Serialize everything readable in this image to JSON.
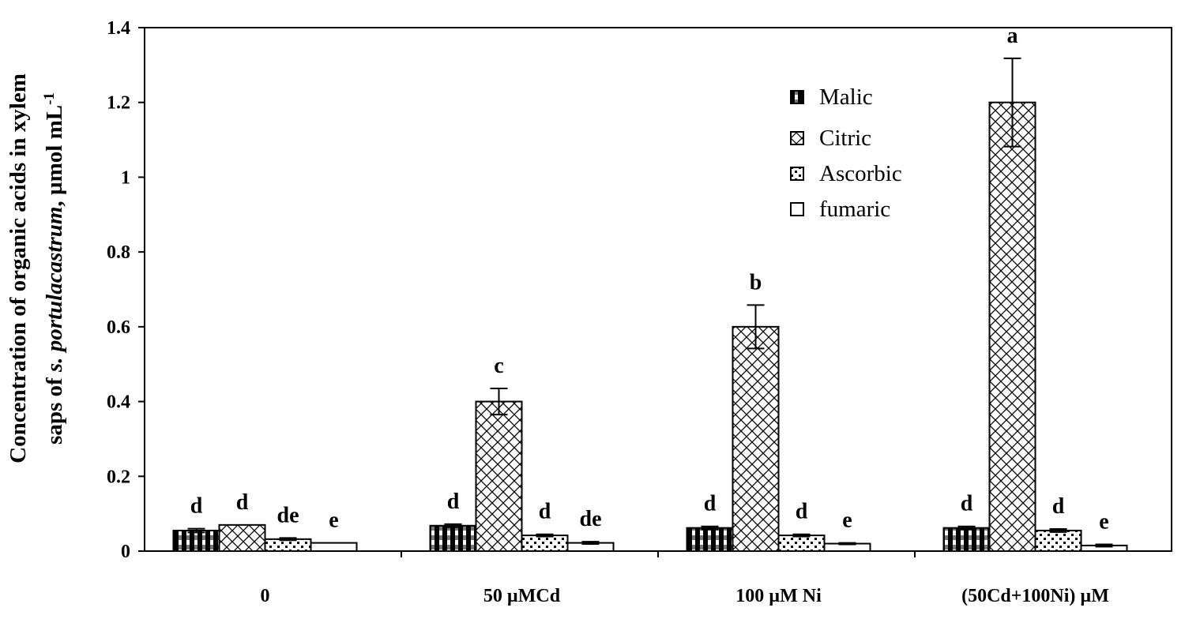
{
  "chart_data": {
    "type": "bar",
    "title": "",
    "xlabel": "",
    "ylabel_line1": "Concentration of organic acids in xylem",
    "ylabel_line2_prefix": "saps of ",
    "ylabel_line2_species": "s. portulacastrum",
    "ylabel_line2_suffix": ", µmol mL",
    "ylabel_superscript": "-1",
    "ylim": [
      0,
      1.4
    ],
    "yticks": [
      0,
      0.2,
      0.4,
      0.6,
      0.8,
      1,
      1.2,
      1.4
    ],
    "ytick_labels": [
      "0",
      "0.2",
      "0.4",
      "0.6",
      "0.8",
      "1",
      "1.2",
      "1.4"
    ],
    "categories": [
      "0",
      "50 µMCd",
      "100 µM Ni",
      "(50Cd+100Ni) µM"
    ],
    "series": [
      {
        "name": "Malic",
        "values": [
          0.055,
          0.068,
          0.062,
          0.062
        ],
        "errors": [
          0.005,
          0.004,
          0.004,
          0.004
        ],
        "letters": [
          "d",
          "d",
          "d",
          "d"
        ]
      },
      {
        "name": "Citric",
        "values": [
          0.07,
          0.4,
          0.6,
          1.2
        ],
        "errors": [
          0.0,
          0.035,
          0.058,
          0.118
        ],
        "letters": [
          "d",
          "c",
          "b",
          "a"
        ]
      },
      {
        "name": "Ascorbic",
        "values": [
          0.032,
          0.042,
          0.042,
          0.055
        ],
        "errors": [
          0.003,
          0.003,
          0.003,
          0.004
        ],
        "letters": [
          "de",
          "d",
          "d",
          "d"
        ]
      },
      {
        "name": "fumaric",
        "values": [
          0.022,
          0.022,
          0.02,
          0.015
        ],
        "errors": [
          0.0,
          0.003,
          0.002,
          0.003
        ],
        "letters": [
          "e",
          "de",
          "e",
          "e"
        ]
      }
    ],
    "legend_position": "top-right",
    "grid": false
  }
}
